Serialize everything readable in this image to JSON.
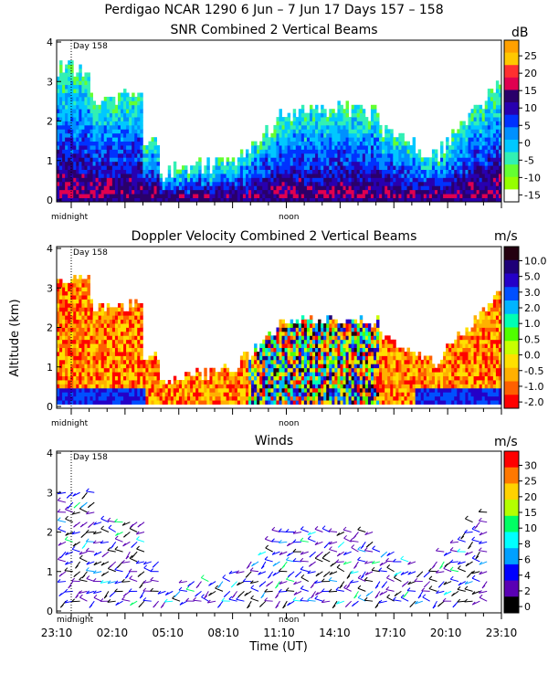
{
  "header": {
    "title": "Perdigao NCAR 1290    6 Jun –   7 Jun 17 Days 157 – 158"
  },
  "ylabel": "Altitude (km)",
  "xlabel": "Time (UT)",
  "day_marker": "Day 158",
  "midnight_label": "midnight",
  "noon_label": "noon",
  "chart_data": [
    {
      "type": "heatmap",
      "title": "SNR Combined 2 Vertical Beams",
      "ylim": [
        0,
        4
      ],
      "yticks": [
        "0",
        "1",
        "2",
        "3",
        "4"
      ],
      "colorbar": {
        "unit": "dB",
        "labels": [
          "25",
          "20",
          "15",
          "10",
          "5",
          "0",
          "-5",
          "-10",
          "-15"
        ],
        "colors": [
          "#ffa000",
          "#ffc800",
          "#ff3030",
          "#e00050",
          "#2a006a",
          "#2800b0",
          "#0032ff",
          "#0090ff",
          "#00c8ff",
          "#32f0b4",
          "#64ff32",
          "#96ff00",
          "#ffffff"
        ]
      }
    },
    {
      "type": "heatmap",
      "title": "Doppler Velocity Combined 2 Vertical Beams",
      "ylim": [
        0,
        4
      ],
      "yticks": [
        "0",
        "1",
        "2",
        "3",
        "4"
      ],
      "colorbar": {
        "unit": "m/s",
        "labels": [
          "10.0",
          "5.0",
          "3.0",
          "2.0",
          "1.0",
          "0.5",
          "0.0",
          "-0.5",
          "-1.0",
          "-2.0"
        ],
        "colors": [
          "#240010",
          "#1e0078",
          "#2400c8",
          "#0050ff",
          "#00b4ff",
          "#00ffb4",
          "#50ff00",
          "#c8ff00",
          "#ffe000",
          "#ffb000",
          "#ff6000",
          "#ff0000"
        ]
      }
    },
    {
      "type": "scatter",
      "title": "Winds",
      "ylim": [
        0,
        4
      ],
      "yticks": [
        "0",
        "1",
        "2",
        "3",
        "4"
      ],
      "x_tick_labels": [
        "23:10",
        "02:10",
        "05:10",
        "08:10",
        "11:10",
        "14:10",
        "17:10",
        "20:10",
        "23:10"
      ],
      "colorbar": {
        "unit": "m/s",
        "labels": [
          "30",
          "25",
          "20",
          "15",
          "10",
          "8",
          "6",
          "4",
          "2",
          "0"
        ],
        "colors": [
          "#ff0000",
          "#ff7800",
          "#ffd200",
          "#b4ff00",
          "#00ff64",
          "#00ffff",
          "#00a0ff",
          "#0000ff",
          "#5a00b4",
          "#000000"
        ]
      }
    }
  ]
}
